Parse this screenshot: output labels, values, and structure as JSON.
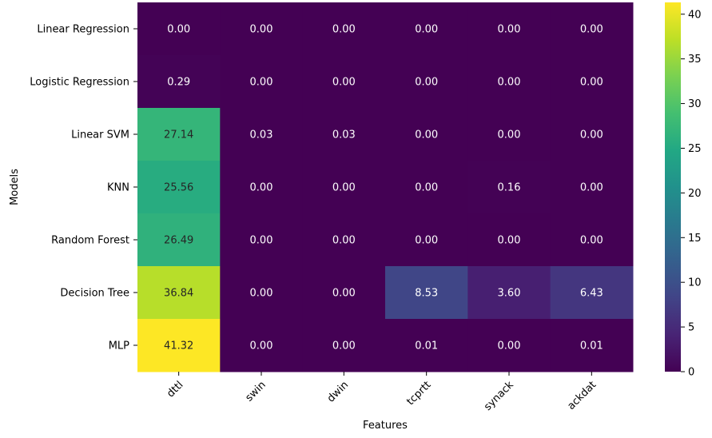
{
  "chart_data": {
    "type": "heatmap",
    "title": "",
    "xlabel": "Features",
    "ylabel": "Models",
    "x_categories": [
      "dttl",
      "swin",
      "dwin",
      "tcprtt",
      "synack",
      "ackdat"
    ],
    "y_categories": [
      "Linear Regression",
      "Logistic Regression",
      "Linear SVM",
      "KNN",
      "Random Forest",
      "Decision Tree",
      "MLP"
    ],
    "values": [
      [
        0.0,
        0.0,
        0.0,
        0.0,
        0.0,
        0.0
      ],
      [
        0.29,
        0.0,
        0.0,
        0.0,
        0.0,
        0.0
      ],
      [
        27.14,
        0.03,
        0.03,
        0.0,
        0.0,
        0.0
      ],
      [
        25.56,
        0.0,
        0.0,
        0.0,
        0.16,
        0.0
      ],
      [
        26.49,
        0.0,
        0.0,
        0.0,
        0.0,
        0.0
      ],
      [
        36.84,
        0.0,
        0.0,
        8.53,
        3.6,
        6.43
      ],
      [
        41.32,
        0.0,
        0.0,
        0.01,
        0.0,
        0.01
      ]
    ],
    "value_labels": [
      [
        "0.00",
        "0.00",
        "0.00",
        "0.00",
        "0.00",
        "0.00"
      ],
      [
        "0.29",
        "0.00",
        "0.00",
        "0.00",
        "0.00",
        "0.00"
      ],
      [
        "27.14",
        "0.03",
        "0.03",
        "0.00",
        "0.00",
        "0.00"
      ],
      [
        "25.56",
        "0.00",
        "0.00",
        "0.00",
        "0.16",
        "0.00"
      ],
      [
        "26.49",
        "0.00",
        "0.00",
        "0.00",
        "0.00",
        "0.00"
      ],
      [
        "36.84",
        "0.00",
        "0.00",
        "8.53",
        "3.60",
        "6.43"
      ],
      [
        "41.32",
        "0.00",
        "0.00",
        "0.01",
        "0.00",
        "0.01"
      ]
    ],
    "colormap": "viridis",
    "vmin": 0,
    "vmax": 41.32,
    "colorbar_ticks": [
      0,
      5,
      10,
      15,
      20,
      25,
      30,
      35,
      40
    ],
    "colorbar_tick_labels": [
      "0",
      "5",
      "10",
      "15",
      "20",
      "25",
      "30",
      "35",
      "40"
    ],
    "colors": {
      "text_dark": "#262626",
      "text_light": "#ffffff",
      "axis": "#000000"
    }
  }
}
